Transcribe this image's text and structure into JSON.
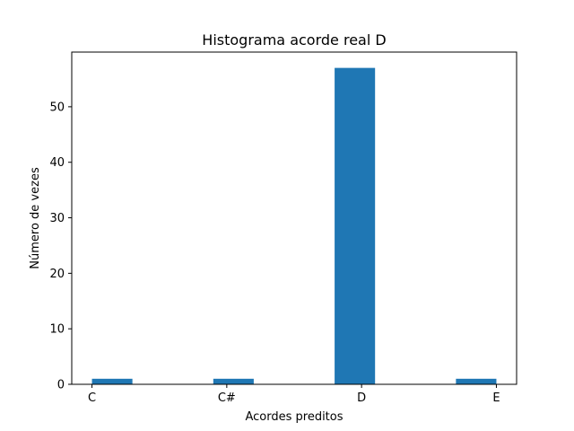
{
  "chart_data": {
    "type": "bar",
    "title": "Histograma acorde real D",
    "xlabel": "Acordes preditos",
    "ylabel": "Número de vezes",
    "categories": [
      "C",
      "C#",
      "D",
      "E"
    ],
    "values": [
      1,
      1,
      57,
      1
    ],
    "yticks": [
      0,
      10,
      20,
      30,
      40,
      50
    ],
    "ylim": [
      0,
      59.85
    ],
    "grid": false,
    "bar_color": "#1f77b4"
  }
}
